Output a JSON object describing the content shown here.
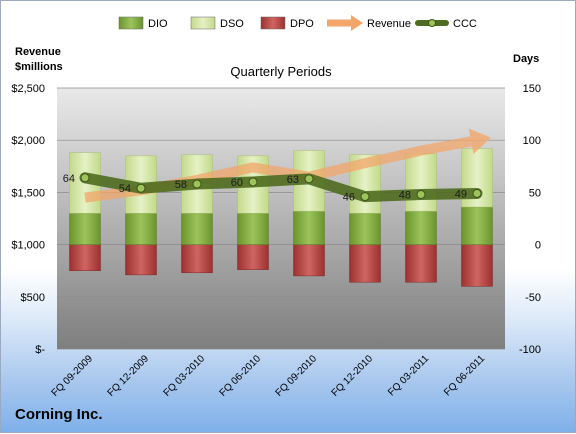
{
  "company": "Corning Inc.",
  "chart_data": {
    "type": "bar",
    "title": "Quarterly Periods",
    "y_left_label": [
      "Revenue",
      "$millions"
    ],
    "y_right_label": "Days",
    "y_left_ticks": [
      "$-",
      "$500",
      "$1,000",
      "$1,500",
      "$2,000",
      "$2,500"
    ],
    "y_left_lim": [
      0,
      2500
    ],
    "y_right_ticks": [
      "-100",
      "-50",
      "0",
      "50",
      "100",
      "150"
    ],
    "y_right_lim": [
      -100,
      150
    ],
    "categories": [
      "FQ 09-2009",
      "FQ 12-2009",
      "FQ 03-2010",
      "FQ 06-2010",
      "FQ 09-2010",
      "FQ 12-2010",
      "FQ 03-2011",
      "FQ 06-2011"
    ],
    "series": [
      {
        "name": "DIO",
        "type": "bar",
        "axis": "right",
        "color": "#7fa83a",
        "values": [
          30,
          30,
          30,
          30,
          32,
          30,
          32,
          36
        ]
      },
      {
        "name": "DSO",
        "type": "bar",
        "axis": "right",
        "color": "#d4e6a4",
        "values": [
          58,
          55,
          56,
          55,
          58,
          56,
          55,
          56
        ]
      },
      {
        "name": "DPO",
        "type": "bar",
        "axis": "right",
        "color": "#c0504d",
        "values": [
          -25,
          -29,
          -27,
          -24,
          -30,
          -36,
          -36,
          -40
        ]
      },
      {
        "name": "Revenue",
        "type": "arrow-line",
        "axis": "left",
        "color": "#f2a66a",
        "values": [
          1450,
          1520,
          1620,
          1740,
          1650,
          1780,
          1900,
          2000
        ]
      },
      {
        "name": "CCC",
        "type": "line",
        "axis": "right",
        "color": "#4f6b1f",
        "values": [
          64,
          54,
          58,
          60,
          63,
          46,
          48,
          49
        ],
        "labels": [
          "64",
          "54",
          "58",
          "60",
          "63",
          "46",
          "48",
          "49"
        ]
      }
    ],
    "legend": [
      "DIO",
      "DSO",
      "DPO",
      "Revenue",
      "CCC"
    ],
    "legend_position": "top",
    "grid": true
  }
}
